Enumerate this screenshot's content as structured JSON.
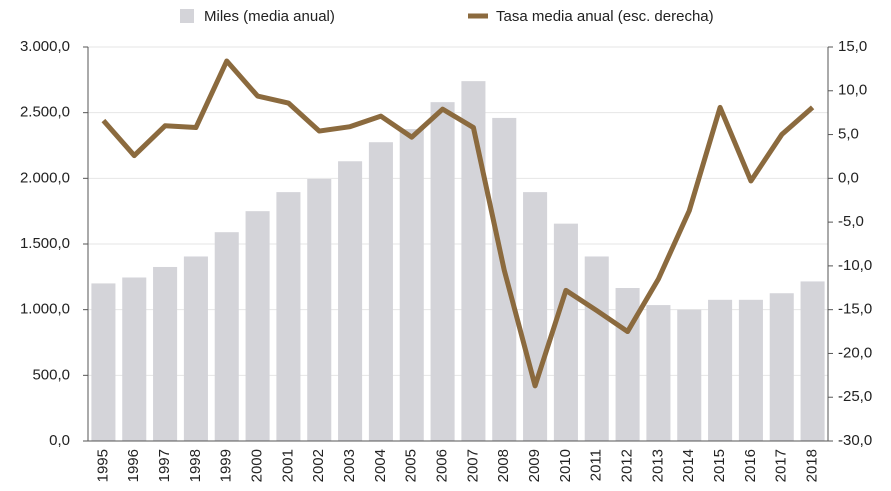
{
  "chart_data": {
    "type": "bar-line",
    "categories": [
      "1995",
      "1996",
      "1997",
      "1998",
      "1999",
      "2000",
      "2001",
      "2002",
      "2003",
      "2004",
      "2005",
      "2006",
      "2007",
      "2008",
      "2009",
      "2010",
      "2011",
      "2012",
      "2013",
      "2014",
      "2015",
      "2016",
      "2017",
      "2018"
    ],
    "series": [
      {
        "name": "Miles (media anual)",
        "type": "bar",
        "color": "#d4d4d9",
        "axis": "y",
        "values": [
          1200,
          1245,
          1325,
          1405,
          1590,
          1750,
          1895,
          1995,
          2130,
          2275,
          2375,
          2580,
          2740,
          2460,
          1895,
          1655,
          1405,
          1165,
          1035,
          1000,
          1075,
          1075,
          1125,
          1215
        ]
      },
      {
        "name": "Tasa media anual (esc. derecha)",
        "type": "line",
        "color": "#8b6a3e",
        "axis": "y2",
        "values": [
          6.6,
          2.6,
          6.0,
          5.8,
          13.4,
          9.4,
          8.6,
          5.4,
          5.9,
          7.1,
          4.7,
          7.9,
          5.8,
          -10.5,
          -23.7,
          -12.8,
          -15.1,
          -17.5,
          -11.5,
          -3.7,
          8.1,
          -0.3,
          5.0,
          8.1
        ]
      }
    ],
    "ylim": [
      0,
      3000
    ],
    "yticks": [
      {
        "value": 0,
        "label": "0,0"
      },
      {
        "value": 500,
        "label": "500,0"
      },
      {
        "value": 1000,
        "label": "1.000,0"
      },
      {
        "value": 1500,
        "label": "1.500,0"
      },
      {
        "value": 2000,
        "label": "2.000,0"
      },
      {
        "value": 2500,
        "label": "2.500,0"
      },
      {
        "value": 3000,
        "label": "3.000,0"
      }
    ],
    "y2lim": [
      -30,
      15
    ],
    "y2ticks": [
      {
        "value": -30,
        "label": "-30,0"
      },
      {
        "value": -25,
        "label": "-25,0"
      },
      {
        "value": -20,
        "label": "-20,0"
      },
      {
        "value": -15,
        "label": "-15,0"
      },
      {
        "value": -10,
        "label": "-10,0"
      },
      {
        "value": -5,
        "label": "-5,0"
      },
      {
        "value": 0,
        "label": "0,0"
      },
      {
        "value": 5,
        "label": "5,0"
      },
      {
        "value": 10,
        "label": "10,0"
      },
      {
        "value": 15,
        "label": "15,0"
      }
    ],
    "grid": true
  }
}
